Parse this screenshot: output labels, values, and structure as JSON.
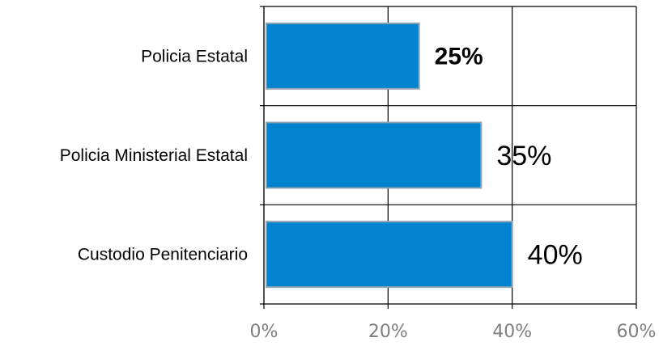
{
  "chart_data": {
    "type": "bar",
    "orientation": "horizontal",
    "categories": [
      "Policia Estatal",
      "Policia Ministerial Estatal",
      "Custodio Penitenciario"
    ],
    "values": [
      25,
      35,
      40
    ],
    "data_labels": [
      "25%",
      "35%",
      "40%"
    ],
    "highlighted_category": "Policia Estatal",
    "xlim": [
      0,
      60
    ],
    "x_ticks": [
      0,
      20,
      40,
      60
    ],
    "x_tick_labels": [
      "0%",
      "20%",
      "40%",
      "60%"
    ],
    "grid": true,
    "legend": "none",
    "colors": {
      "bar": "#0283cf",
      "bar_edge": "#8fa2b0",
      "grid": "#000000",
      "tick_label": "#7f7f7f"
    }
  }
}
